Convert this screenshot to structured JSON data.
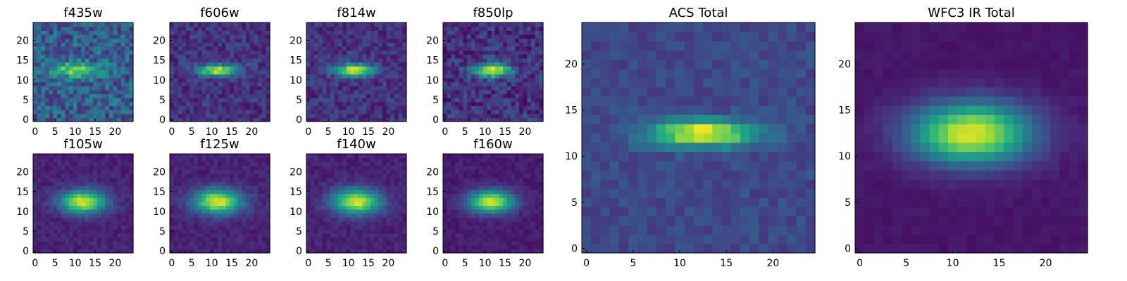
{
  "chart_data": [
    {
      "type": "heatmap",
      "title": "f435w",
      "xticks": [
        0,
        5,
        10,
        15,
        20
      ],
      "yticks": [
        0,
        5,
        10,
        15,
        20
      ],
      "xlim": [
        -0.5,
        24.5
      ],
      "ylim": [
        -0.5,
        24.5
      ],
      "grid": false,
      "colormap": "viridis",
      "source": {
        "cx": 10.5,
        "cy": 12.5,
        "sx": 4.0,
        "sy": 1.3,
        "amp": 0.55,
        "noise": 0.35,
        "base": 0.3
      }
    },
    {
      "type": "heatmap",
      "title": "f606w",
      "xticks": [
        0,
        5,
        10,
        15,
        20
      ],
      "yticks": [
        0,
        5,
        10,
        15,
        20
      ],
      "xlim": [
        -0.5,
        24.5
      ],
      "ylim": [
        -0.5,
        24.5
      ],
      "grid": false,
      "colormap": "viridis",
      "source": {
        "cx": 11.5,
        "cy": 12.5,
        "sx": 3.5,
        "sy": 1.0,
        "amp": 0.8,
        "noise": 0.2,
        "base": 0.15
      }
    },
    {
      "type": "heatmap",
      "title": "f814w",
      "xticks": [
        0,
        5,
        10,
        15,
        20
      ],
      "yticks": [
        0,
        5,
        10,
        15,
        20
      ],
      "xlim": [
        -0.5,
        24.5
      ],
      "ylim": [
        -0.5,
        24.5
      ],
      "grid": false,
      "colormap": "viridis",
      "source": {
        "cx": 11.5,
        "cy": 12.5,
        "sx": 3.5,
        "sy": 1.1,
        "amp": 0.8,
        "noise": 0.2,
        "base": 0.15
      }
    },
    {
      "type": "heatmap",
      "title": "f850lp",
      "xticks": [
        0,
        5,
        10,
        15,
        20
      ],
      "yticks": [
        0,
        5,
        10,
        15,
        20
      ],
      "xlim": [
        -0.5,
        24.5
      ],
      "ylim": [
        -0.5,
        24.5
      ],
      "grid": false,
      "colormap": "viridis",
      "source": {
        "cx": 12.0,
        "cy": 12.5,
        "sx": 3.2,
        "sy": 1.2,
        "amp": 0.8,
        "noise": 0.25,
        "base": 0.15
      }
    },
    {
      "type": "heatmap",
      "title": "ACS Total",
      "xticks": [
        0,
        5,
        10,
        15,
        20
      ],
      "yticks": [
        0,
        5,
        10,
        15,
        20
      ],
      "xlim": [
        -0.5,
        24.5
      ],
      "ylim": [
        -0.5,
        24.5
      ],
      "grid": false,
      "colormap": "viridis",
      "source": {
        "cx": 12.5,
        "cy": 12.5,
        "sx": 4.0,
        "sy": 1.0,
        "amp": 0.8,
        "noise": 0.12,
        "base": 0.22
      }
    },
    {
      "type": "heatmap",
      "title": "WFC3 IR Total",
      "xticks": [
        0,
        5,
        10,
        15,
        20
      ],
      "yticks": [
        0,
        5,
        10,
        15,
        20
      ],
      "xlim": [
        -0.5,
        24.5
      ],
      "ylim": [
        -0.5,
        24.5
      ],
      "grid": false,
      "colormap": "viridis",
      "source": {
        "cx": 12.0,
        "cy": 12.5,
        "sx": 4.5,
        "sy": 2.3,
        "amp": 0.9,
        "noise": 0.04,
        "base": 0.06
      }
    },
    {
      "type": "heatmap",
      "title": "f105w",
      "xticks": [
        0,
        5,
        10,
        15,
        20
      ],
      "yticks": [
        0,
        5,
        10,
        15,
        20
      ],
      "xlim": [
        -0.5,
        24.5
      ],
      "ylim": [
        -0.5,
        24.5
      ],
      "grid": false,
      "colormap": "viridis",
      "source": {
        "cx": 12.0,
        "cy": 12.5,
        "sx": 4.0,
        "sy": 2.0,
        "amp": 0.85,
        "noise": 0.1,
        "base": 0.1
      }
    },
    {
      "type": "heatmap",
      "title": "f125w",
      "xticks": [
        0,
        5,
        10,
        15,
        20
      ],
      "yticks": [
        0,
        5,
        10,
        15,
        20
      ],
      "xlim": [
        -0.5,
        24.5
      ],
      "ylim": [
        -0.5,
        24.5
      ],
      "grid": false,
      "colormap": "viridis",
      "source": {
        "cx": 11.5,
        "cy": 12.5,
        "sx": 4.2,
        "sy": 2.2,
        "amp": 0.85,
        "noise": 0.1,
        "base": 0.1
      }
    },
    {
      "type": "heatmap",
      "title": "f140w",
      "xticks": [
        0,
        5,
        10,
        15,
        20
      ],
      "yticks": [
        0,
        5,
        10,
        15,
        20
      ],
      "xlim": [
        -0.5,
        24.5
      ],
      "ylim": [
        -0.5,
        24.5
      ],
      "grid": false,
      "colormap": "viridis",
      "source": {
        "cx": 12.0,
        "cy": 12.5,
        "sx": 4.2,
        "sy": 2.2,
        "amp": 0.85,
        "noise": 0.1,
        "base": 0.1
      }
    },
    {
      "type": "heatmap",
      "title": "f160w",
      "xticks": [
        0,
        5,
        10,
        15,
        20
      ],
      "yticks": [
        0,
        5,
        10,
        15,
        20
      ],
      "xlim": [
        -0.5,
        24.5
      ],
      "ylim": [
        -0.5,
        24.5
      ],
      "grid": false,
      "colormap": "viridis",
      "source": {
        "cx": 11.5,
        "cy": 12.5,
        "sx": 4.0,
        "sy": 2.0,
        "amp": 0.85,
        "noise": 0.08,
        "base": 0.08
      }
    }
  ]
}
